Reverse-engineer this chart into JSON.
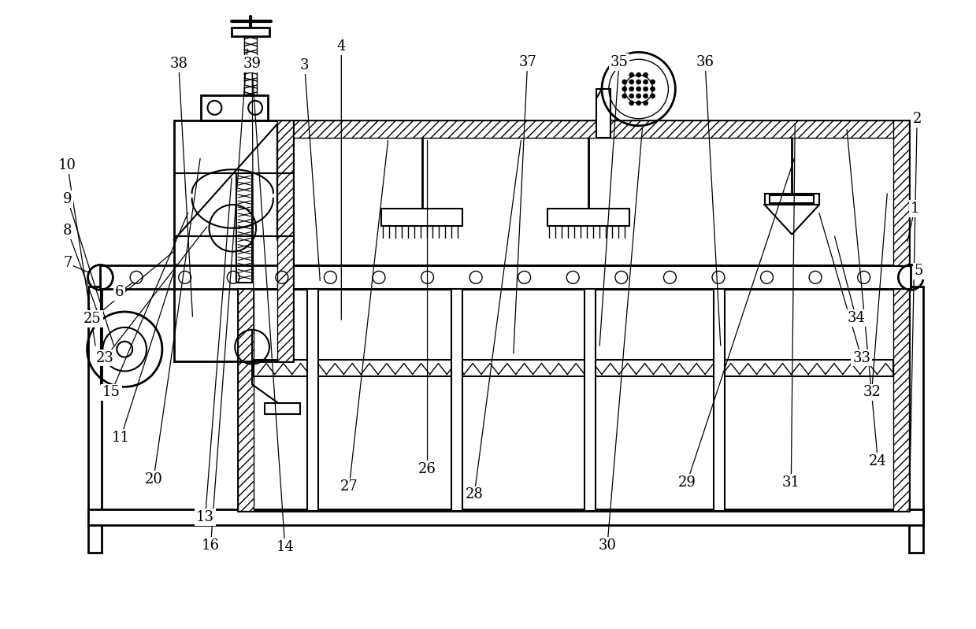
{
  "bg_color": "#ffffff",
  "line_color": "#000000",
  "label_fontsize": 13,
  "labels_data": [
    [
      "1",
      1165,
      535,
      1155,
      490
    ],
    [
      "2",
      1168,
      650,
      1158,
      148
    ],
    [
      "3",
      385,
      718,
      405,
      440
    ],
    [
      "4",
      432,
      742,
      432,
      390
    ],
    [
      "5",
      1170,
      455,
      1168,
      452
    ],
    [
      "6",
      148,
      428,
      168,
      442
    ],
    [
      "7",
      82,
      465,
      112,
      452
    ],
    [
      "8",
      82,
      507,
      128,
      382
    ],
    [
      "9",
      82,
      547,
      142,
      357
    ],
    [
      "10",
      82,
      590,
      118,
      357
    ],
    [
      "11",
      150,
      242,
      222,
      467
    ],
    [
      "13",
      258,
      140,
      292,
      577
    ],
    [
      "14",
      360,
      102,
      318,
      712
    ],
    [
      "15",
      138,
      300,
      237,
      532
    ],
    [
      "16",
      265,
      104,
      312,
      742
    ],
    [
      "20",
      192,
      189,
      252,
      602
    ],
    [
      "23",
      130,
      344,
      262,
      514
    ],
    [
      "24",
      1118,
      212,
      1078,
      639
    ],
    [
      "25",
      114,
      394,
      220,
      482
    ],
    [
      "26",
      542,
      202,
      542,
      625
    ],
    [
      "27",
      442,
      179,
      492,
      625
    ],
    [
      "28",
      602,
      169,
      662,
      625
    ],
    [
      "29",
      874,
      185,
      1012,
      602
    ],
    [
      "30",
      772,
      104,
      817,
      640
    ],
    [
      "31",
      1007,
      185,
      1012,
      647
    ],
    [
      "32",
      1110,
      300,
      1130,
      557
    ],
    [
      "33",
      1097,
      344,
      1042,
      532
    ],
    [
      "34",
      1090,
      395,
      1062,
      502
    ],
    [
      "35",
      787,
      722,
      762,
      357
    ],
    [
      "36",
      897,
      722,
      917,
      357
    ],
    [
      "37",
      670,
      722,
      652,
      347
    ],
    [
      "38",
      224,
      720,
      242,
      394
    ],
    [
      "39",
      318,
      720,
      320,
      377
    ]
  ]
}
